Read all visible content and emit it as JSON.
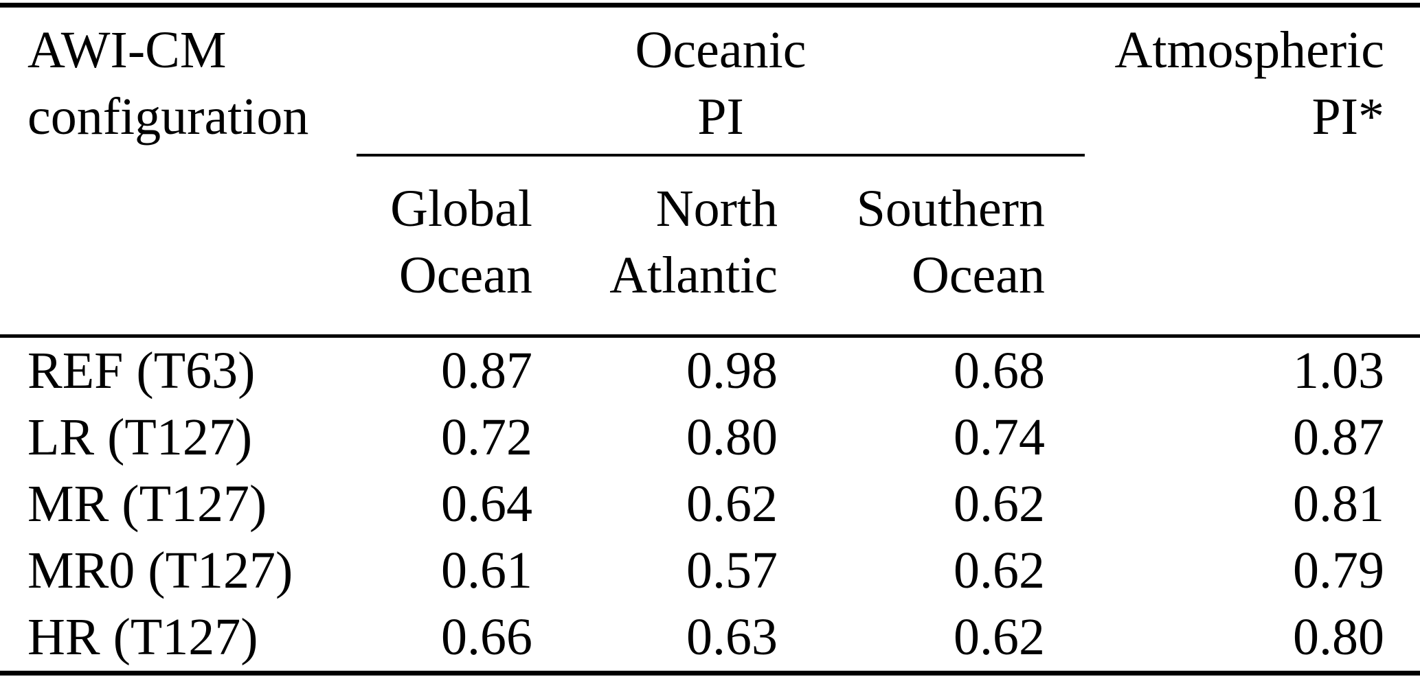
{
  "colors": {
    "background": "#ffffff",
    "text": "#000000",
    "rule": "#000000"
  },
  "table": {
    "config_header": {
      "line1": "AWI-CM",
      "line2": "configuration"
    },
    "oceanic_group": {
      "line1": "Oceanic",
      "line2": "PI"
    },
    "atmospheric_header": {
      "line1": "Atmospheric",
      "line2": "PI*"
    },
    "subheaders": [
      {
        "line1": "Global",
        "line2": "Ocean"
      },
      {
        "line1": "North",
        "line2": "Atlantic"
      },
      {
        "line1": "Southern",
        "line2": "Ocean"
      }
    ],
    "rows": [
      {
        "config": "REF (T63)",
        "global_ocean": "0.87",
        "north_atlantic": "0.98",
        "southern_ocean": "0.68",
        "atmospheric": "1.03"
      },
      {
        "config": "LR (T127)",
        "global_ocean": "0.72",
        "north_atlantic": "0.80",
        "southern_ocean": "0.74",
        "atmospheric": "0.87"
      },
      {
        "config": "MR (T127)",
        "global_ocean": "0.64",
        "north_atlantic": "0.62",
        "southern_ocean": "0.62",
        "atmospheric": "0.81"
      },
      {
        "config": "MR0 (T127)",
        "global_ocean": "0.61",
        "north_atlantic": "0.57",
        "southern_ocean": "0.62",
        "atmospheric": "0.79"
      },
      {
        "config": "HR (T127)",
        "global_ocean": "0.66",
        "north_atlantic": "0.63",
        "southern_ocean": "0.62",
        "atmospheric": "0.80"
      }
    ]
  }
}
